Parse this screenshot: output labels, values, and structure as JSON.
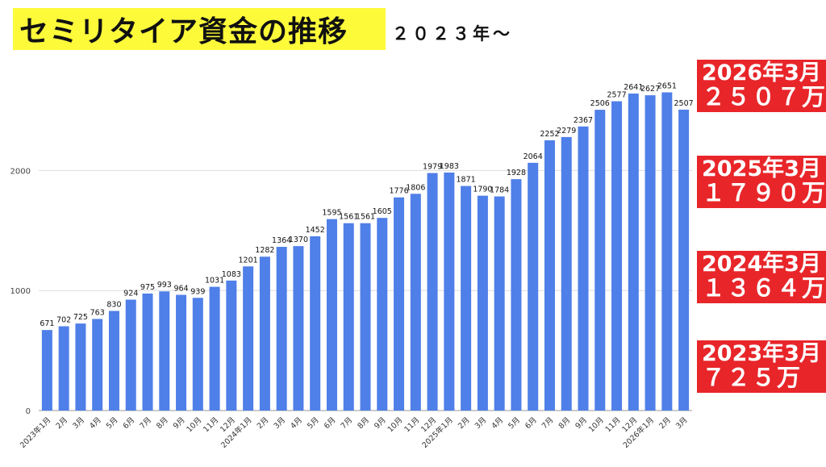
{
  "title": "セミリタイア資金の推移",
  "subtitle": "２０２３年〜",
  "badges": [
    {
      "line1": "2026年3月",
      "line2": "２５０７万"
    },
    {
      "line1": "2025年3月",
      "line2": "１７９０万"
    },
    {
      "line1": "2024年3月",
      "line2": "１３６４万"
    },
    {
      "line1": "2023年3月",
      "line2": "７２５万"
    }
  ],
  "colors": {
    "bar": "#4f7fe8",
    "grid": "#dddddd",
    "title_bg": "#fdfa3a",
    "badge_bg": "#e8262a"
  },
  "chart_data": {
    "type": "bar",
    "title": "",
    "xlabel": "",
    "ylabel": "",
    "ylim": [
      0,
      2900
    ],
    "yticks": [
      0,
      1000,
      2000
    ],
    "grid": true,
    "categories": [
      "2023年1月",
      "2月",
      "3月",
      "4月",
      "5月",
      "6月",
      "7月",
      "8月",
      "9月",
      "10月",
      "11月",
      "12月",
      "2024年1月",
      "2月",
      "3月",
      "4月",
      "5月",
      "6月",
      "7月",
      "8月",
      "9月",
      "10月",
      "11月",
      "12月",
      "2025年1月",
      "2月",
      "3月",
      "4月",
      "5月",
      "6月",
      "7月",
      "8月",
      "9月",
      "10月",
      "11月",
      "12月",
      "2026年1月",
      "2月",
      "3月"
    ],
    "values": [
      671,
      702,
      725,
      763,
      830,
      924,
      975,
      993,
      964,
      939,
      1031,
      1083,
      1201,
      1282,
      1364,
      1370,
      1452,
      1595,
      1561,
      1561,
      1605,
      1776,
      1806,
      1979,
      1983,
      1871,
      1790,
      1784,
      1928,
      2064,
      2252,
      2279,
      2367,
      2506,
      2577,
      2641,
      2627,
      2651,
      2507
    ]
  }
}
